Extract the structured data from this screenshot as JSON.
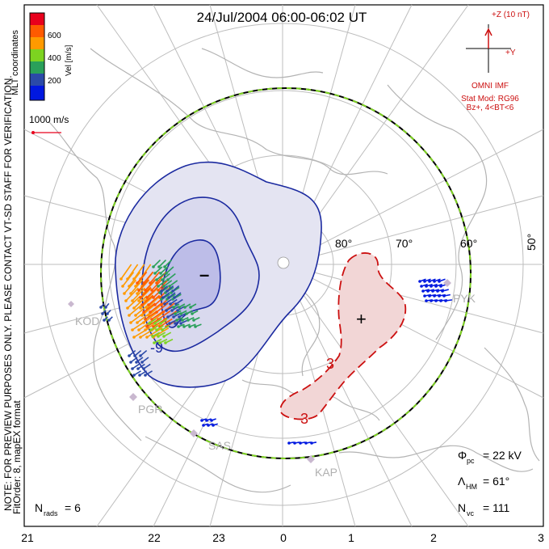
{
  "title": "24/Jul/2004  06:00-06:02  UT",
  "colorbar": {
    "label": "Vel [m/s]",
    "ticks": [
      "600",
      "400",
      "200"
    ],
    "colors": [
      "#e8001c",
      "#ff5a00",
      "#ff9a00",
      "#7dd320",
      "#2aa05a",
      "#2b4aa8",
      "#0018e0"
    ]
  },
  "coord_label": "MLT coordinates",
  "scale_vector_label": "1000 m/s",
  "imf": {
    "z_label": "+Z (10 nT)",
    "y_label": "+Y",
    "source": "OMNI IMF",
    "stat_mod": "Stat Mod: RG96",
    "condition": "Bz+, 4<BT<6"
  },
  "note": "NOTE: FOR PREVIEW PURPOSES ONLY. PLEASE CONTACT VT-SD STAFF FOR VERIFICATION.",
  "fit_order": "FitOrder: 8, mapEX format",
  "latitude_labels": [
    "80°",
    "70°",
    "60°",
    "50°"
  ],
  "mlt_labels": [
    "21",
    "22",
    "23",
    "0",
    "1",
    "2",
    "3"
  ],
  "stations": [
    "KOD",
    "PGR",
    "SAS",
    "KAP",
    "PYK"
  ],
  "stats": {
    "phi_pc": "Φpc = 22 kV",
    "phi_sym": "Φ",
    "phi_sub": "pc",
    "phi_val": "= 22 kV",
    "lambda_sym": "Λ",
    "lambda_sub": "HM",
    "lambda_val": "= 61°",
    "nvc_sym": "N",
    "nvc_sub": "vc",
    "nvc_val": "= 111",
    "nrads_sym": "N",
    "nrads_sub": "rads",
    "nrads_val": "= 6"
  },
  "cells": {
    "negative_sign": "–",
    "positive_sign": "+",
    "contour_labels": [
      "-9",
      "3",
      "3"
    ]
  },
  "colors": {
    "negative_fill": "#d6d6ee",
    "negative_line": "#1b2aa0",
    "positive_fill": "#f2d6d6",
    "positive_line": "#cc1010",
    "coast": "#bdbdbd",
    "grid": "#bdbdbd",
    "boundary_dash": "#7ed321"
  }
}
